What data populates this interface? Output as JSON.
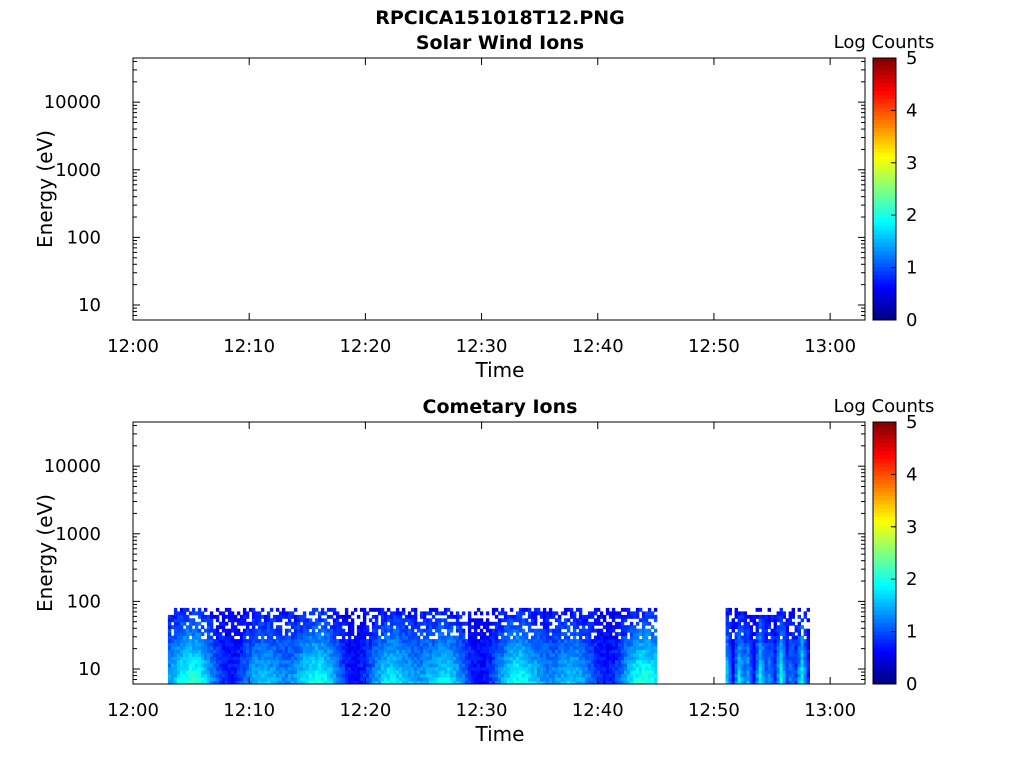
{
  "figure": {
    "title": "RPCICA151018T12.PNG"
  },
  "chart_data": [
    {
      "type": "heatmap",
      "title": "Solar Wind Ions",
      "xlabel": "Time",
      "ylabel": "Energy (eV)",
      "x_ticks": [
        "12:00",
        "12:10",
        "12:20",
        "12:30",
        "12:40",
        "12:50",
        "13:00"
      ],
      "xlim": [
        "12:00",
        "13:03"
      ],
      "y_scale": "log",
      "y_ticks": [
        10,
        100,
        1000,
        10000
      ],
      "ylim": [
        6,
        45000
      ],
      "colorbar": {
        "label": "Log Counts",
        "range": [
          0,
          5
        ],
        "ticks": [
          0,
          1,
          2,
          3,
          4,
          5
        ],
        "colormap": "jet"
      },
      "data_segments": []
    },
    {
      "type": "heatmap",
      "title": "Cometary Ions",
      "xlabel": "Time",
      "ylabel": "Energy (eV)",
      "x_ticks": [
        "12:00",
        "12:10",
        "12:20",
        "12:30",
        "12:40",
        "12:50",
        "13:00"
      ],
      "xlim": [
        "12:00",
        "13:03"
      ],
      "y_scale": "log",
      "y_ticks": [
        10,
        100,
        1000,
        10000
      ],
      "ylim": [
        6,
        45000
      ],
      "colorbar": {
        "label": "Log Counts",
        "range": [
          0,
          5
        ],
        "ticks": [
          0,
          1,
          2,
          3,
          4,
          5
        ],
        "colormap": "jet"
      },
      "data_segments": [
        {
          "start": "12:03",
          "end": "12:45",
          "energy_range_eV": [
            6,
            80
          ],
          "log_counts_range": [
            0.5,
            2.2
          ]
        },
        {
          "start": "12:51",
          "end": "12:58",
          "energy_range_eV": [
            6,
            80
          ],
          "log_counts_range": [
            0.5,
            2.0
          ]
        }
      ]
    }
  ]
}
